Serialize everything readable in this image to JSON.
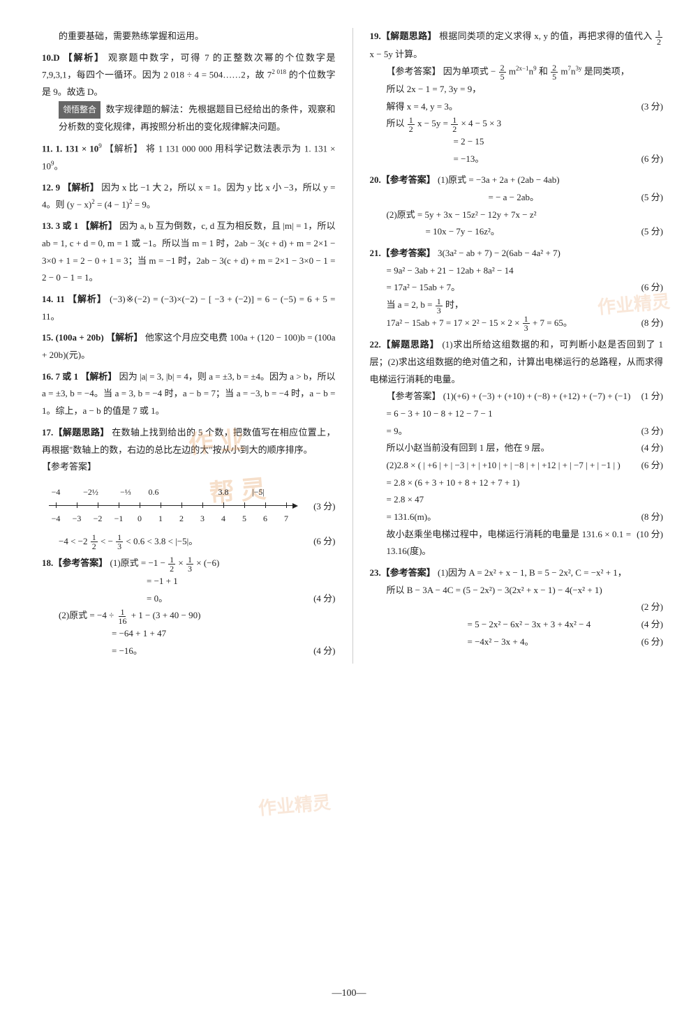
{
  "page_number": "—100—",
  "watermarks": {
    "w1": "作 业",
    "w2": "帮 灵",
    "w3": "作业精灵",
    "w4": "作业精灵"
  },
  "left": {
    "intro_tail": "的重要基础，需要熟练掌握和运用。",
    "q10_head": "10.D 【解析】",
    "q10_a": "观察题中数字，可得 7 的正整数次幂的个位数字是 7,9,3,1，每四个一循环。因为 2 018 ÷ 4 = 504……2，故 7",
    "q10_a_exp": "2 018",
    "q10_a2": "的个位数字是 9。故选 D。",
    "q10_box_label": "领悟整合",
    "q10_box": "数字规律题的解法：先根据题目已经给出的条件，观察和分析数的变化规律，再按照分析出的变化规律解决问题。",
    "q11_head": "11. 1. 131 × 10",
    "q11_exp": "9",
    "q11_label": " 【解析】 ",
    "q11_body": "将 1 131 000 000 用科学记数法表示为 1. 131 × 10",
    "q11_body_exp": "9",
    "q11_tail": "。",
    "q12_head": "12. 9 【解析】 ",
    "q12_body": "因为 x 比 −1 大 2，所以 x = 1。因为 y 比 x 小 −3，所以 y = 4。则 (y − x)",
    "q12_sup1": "2",
    "q12_body2": " = (4 − 1)",
    "q12_sup2": "2",
    "q12_body3": " = 9。",
    "q13_head": "13. 3 或 1 【解析】 ",
    "q13_body": "因为 a, b 互为倒数，c, d 互为相反数，且 |m| = 1，所以 ab = 1, c + d = 0,  m = 1 或 −1。所以当 m = 1 时，2ab − 3(c + d) + m = 2×1 − 3×0 + 1 = 2 − 0 + 1 = 3；当 m = −1 时，2ab − 3(c + d) + m = 2×1 − 3×0 − 1 = 2 − 0 − 1 = 1。",
    "q14_head": "14. 11 【解析】 ",
    "q14_body": "(−3)※(−2) = (−3)×(−2) − [ −3 + (−2)] = 6 − (−5) = 6 + 5 = 11。",
    "q15_head": "15. (100a + 20b) 【解析】 ",
    "q15_body": "他家这个月应交电费 100a + (120 − 100)b = (100a + 20b)(元)。",
    "q16_head": "16. 7 或 1 【解析】 ",
    "q16_body": "因为 |a| = 3, |b| = 4，则 a = ±3, b = ±4。因为 a > b，所以 a = ±3, b = −4。当 a = 3, b = −4 时，a − b = 7；当 a = −3, b = −4 时，a − b = 1。综上，a − b 的值是 7 或 1。",
    "q17_head": "17.【解题思路】 ",
    "q17_body": "在数轴上找到给出的 5 个数，把数值写在相应位置上，再根据\"数轴上的数，右边的总比左边的大\"按从小到大的顺序排序。",
    "q17_ans_label": "【参考答案】",
    "number_line": {
      "top_labels": [
        "−4",
        "−2½",
        "−⅓",
        "0.6",
        "3.8",
        "|−5|"
      ],
      "top_positions": [
        10,
        60,
        110,
        150,
        250,
        300
      ],
      "ticks": [
        10,
        40,
        70,
        100,
        130,
        160,
        190,
        220,
        250,
        280,
        310,
        340
      ],
      "bot_labels": [
        "−4",
        "−3",
        "−2",
        "−1",
        "0",
        "1",
        "2",
        "3",
        "4",
        "5",
        "6",
        "7"
      ],
      "bot_positions": [
        10,
        40,
        70,
        100,
        130,
        160,
        190,
        220,
        250,
        280,
        310,
        340
      ],
      "score": "(3 分)"
    },
    "q17_ineq": "−4 < −2 ",
    "q17_ineq_f1_top": "1",
    "q17_ineq_f1_bot": "2",
    "q17_ineq_mid": " < − ",
    "q17_ineq_f2_top": "1",
    "q17_ineq_f2_bot": "3",
    "q17_ineq_tail": " < 0.6 < 3.8 < |−5|。",
    "q17_ineq_score": "(6 分)",
    "q18_head": "18.【参考答案】 ",
    "q18_a": "(1)原式 = −1 − ",
    "q18_a_f1t": "1",
    "q18_a_f1b": "2",
    "q18_a_mid": " × ",
    "q18_a_f2t": "1",
    "q18_a_f2b": "3",
    "q18_a_tail": " × (−6)",
    "q18_b": "= −1 + 1",
    "q18_c": "= 0。",
    "q18_c_score": "(4 分)",
    "q18_d": "(2)原式 = −4 ÷ ",
    "q18_d_ft": "1",
    "q18_d_fb": "16",
    "q18_d_tail": " + 1 − (3 + 40 − 90)",
    "q18_e": "= −64 + 1 + 47",
    "q18_f": "= −16。",
    "q18_f_score": "(4 分)"
  },
  "right": {
    "q19_head": "19.【解题思路】 ",
    "q19_a": "根据同类项的定义求得 x, y 的值，再把求得的值代入 ",
    "q19_ft": "1",
    "q19_fb": "2",
    "q19_a2": "x − 5y 计算。",
    "q19_ans_label": "【参考答案】 ",
    "q19_b": "因为单项式 − ",
    "q19_b_f1t": "2",
    "q19_b_f1b": "5",
    "q19_b_m": "m",
    "q19_b_exp1": "2x−1",
    "q19_b_n": "n",
    "q19_b_exp2": "9",
    "q19_b_mid": "和 ",
    "q19_b_f2t": "2",
    "q19_b_f2b": "5",
    "q19_b_m2": "m",
    "q19_b_exp3": "7",
    "q19_b_n2": "n",
    "q19_b_exp4": "3y",
    "q19_b_tail": "是同类项，",
    "q19_c": "所以 2x − 1 = 7, 3y = 9，",
    "q19_d": "解得 x = 4, y = 3。",
    "q19_d_score": "(3 分)",
    "q19_e": "所以 ",
    "q19_e_ft": "1",
    "q19_e_fb": "2",
    "q19_e_mid": "x − 5y = ",
    "q19_e_f2t": "1",
    "q19_e_f2b": "2",
    "q19_e_tail": " × 4 − 5 × 3",
    "q19_f": "= 2 − 15",
    "q19_g": "= −13。",
    "q19_g_score": "(6 分)",
    "q20_head": "20.【参考答案】 ",
    "q20_a": "(1)原式 = −3a + 2a + (2ab − 4ab)",
    "q20_b": "= − a − 2ab。",
    "q20_b_score": "(5 分)",
    "q20_c": "(2)原式 = 5y + 3x − 15z² − 12y + 7x − z²",
    "q20_d": "= 10x − 7y − 16z²。",
    "q20_d_score": "(5 分)",
    "q21_head": "21.【参考答案】 ",
    "q21_a": "3(3a² − ab + 7) − 2(6ab − 4a² + 7)",
    "q21_b": "= 9a² − 3ab + 21 − 12ab + 8a² − 14",
    "q21_c": "= 17a² − 15ab + 7。",
    "q21_c_score": "(6 分)",
    "q21_d": "当 a = 2, b = ",
    "q21_d_ft": "1",
    "q21_d_fb": "3",
    "q21_d_tail": "时，",
    "q21_e": "17a² − 15ab + 7 = 17 × 2² − 15 × 2 × ",
    "q21_e_ft": "1",
    "q21_e_fb": "3",
    "q21_e_tail": " + 7 = 65。",
    "q21_e_score": "(8 分)",
    "q22_head": "22.【解题思路】 ",
    "q22_a": "(1)求出所给这组数据的和，可判断小赵是否回到了 1 层；(2)求出这组数据的绝对值之和，计算出电梯运行的总路程，从而求得电梯运行消耗的电量。",
    "q22_ans_label": "【参考答案】 ",
    "q22_b": "(1)(+6) + (−3) + (+10) + (−8) + (+12) + (−7) + (−1)",
    "q22_b_score": "(1 分)",
    "q22_c": "= 6 − 3 + 10 − 8 + 12 − 7 − 1",
    "q22_d": "= 9。",
    "q22_d_score": "(3 分)",
    "q22_e": "所以小赵当前没有回到 1 层，他在 9 层。",
    "q22_e_score": "(4 分)",
    "q22_f": "(2)2.8 × ( | +6 | + | −3 | + | +10 | + | −8 | + | +12 | + | −7 | + | −1 | )",
    "q22_f_score": "(6 分)",
    "q22_g": "= 2.8 × (6 + 3 + 10 + 8 + 12 + 7 + 1)",
    "q22_h": "= 2.8 × 47",
    "q22_i": "= 131.6(m)。",
    "q22_i_score": "(8 分)",
    "q22_j": "故小赵乘坐电梯过程中，电梯运行消耗的电量是 131.6 × 0.1 = 13.16(度)。",
    "q22_j_score": "(10 分)",
    "q23_head": "23.【参考答案】 ",
    "q23_a": "(1)因为 A = 2x² + x − 1, B = 5 − 2x², C = −x² + 1，",
    "q23_b": "所以 B − 3A − 4C = (5 − 2x²) − 3(2x² + x − 1) − 4(−x² + 1)",
    "q23_b_score": "(2 分)",
    "q23_c": "= 5 − 2x² − 6x² − 3x + 3 + 4x² − 4",
    "q23_c_score": "(4 分)",
    "q23_d": "= −4x² − 3x + 4。",
    "q23_d_score": "(6 分)"
  }
}
